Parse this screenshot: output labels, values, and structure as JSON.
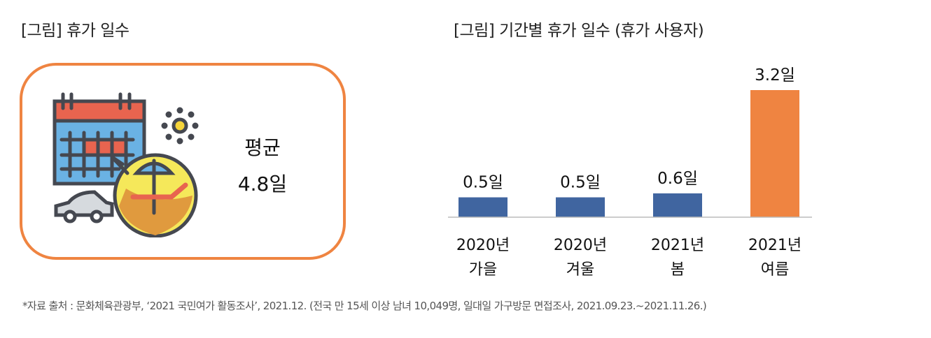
{
  "left": {
    "title": "[그림] 휴가 일수",
    "avg_label": "평균",
    "avg_value": "4.8일"
  },
  "chart_data": {
    "type": "bar",
    "title": "[그림] 기간별 휴가 일수 (휴가 사용자)",
    "categories": [
      [
        "2020년",
        "가을"
      ],
      [
        "2020년",
        "겨울"
      ],
      [
        "2021년",
        "봄"
      ],
      [
        "2021년",
        "여름"
      ]
    ],
    "values": [
      0.5,
      0.5,
      0.6,
      3.2
    ],
    "data_labels": [
      "0.5일",
      "0.5일",
      "0.6일",
      "3.2일"
    ],
    "colors": [
      "#4065a0",
      "#4065a0",
      "#4065a0",
      "#ef8441"
    ],
    "ylim": [
      0,
      3.2
    ],
    "xlabel": "",
    "ylabel": ""
  },
  "footnote": "*자료 출처 : 문화체육관광부, ‘2021 국민여가 활동조사’, 2021.12. (전국 만 15세 이상 남녀 10,049명, 일대일 가구방문 면접조사, 2021.09.23.~2021.11.26.)"
}
